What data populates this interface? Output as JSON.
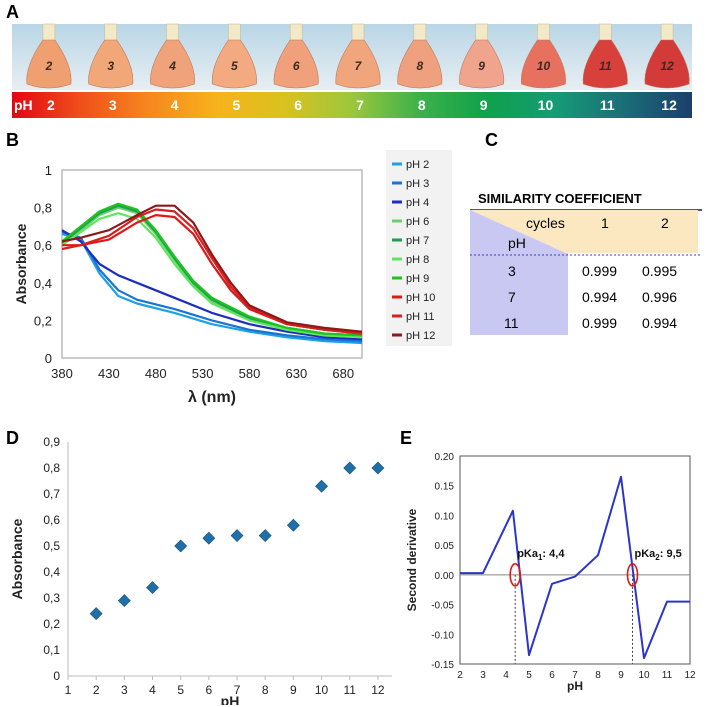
{
  "panels": {
    "a": "A",
    "b": "B",
    "c": "C",
    "d": "D",
    "e": "E"
  },
  "panel_a": {
    "ph_label": "pH",
    "ph_values": [
      "2",
      "3",
      "4",
      "5",
      "6",
      "7",
      "8",
      "9",
      "10",
      "11",
      "12"
    ],
    "bar_colors": [
      "#e30613",
      "#f04e1a",
      "#f6861f",
      "#f7b21b",
      "#d9c21f",
      "#9cc63c",
      "#3bb14a",
      "#0fa14b",
      "#159b75",
      "#1a6e78",
      "#1c3f6b"
    ],
    "flask_colors": [
      "#f0a070",
      "#f1a777",
      "#f0a27a",
      "#f3aa80",
      "#f0a07b",
      "#f1a57d",
      "#efa07f",
      "#f0a48e",
      "#e8705f",
      "#d8403b",
      "#d33a3a"
    ],
    "flask_marks": [
      "2",
      "3",
      "4",
      "5",
      "6",
      "7",
      "8",
      "9",
      "10",
      "11",
      "12"
    ]
  },
  "chart_data": [
    {
      "id": "B",
      "type": "line",
      "xlabel": "λ (nm)",
      "ylabel": "Absorbance",
      "xlim": [
        380,
        700
      ],
      "ylim": [
        0,
        1
      ],
      "xticks": [
        "380",
        "430",
        "480",
        "530",
        "580",
        "630",
        "680"
      ],
      "yticks": [
        "0",
        "0,2",
        "0,4",
        "0,6",
        "0,8",
        "1"
      ],
      "series": [
        {
          "name": "pH 2",
          "color": "#1ea0e6",
          "x": [
            380,
            400,
            420,
            440,
            460,
            500,
            540,
            580,
            620,
            660,
            700
          ],
          "y": [
            0.66,
            0.63,
            0.45,
            0.33,
            0.29,
            0.24,
            0.18,
            0.14,
            0.11,
            0.09,
            0.08
          ]
        },
        {
          "name": "pH 3",
          "color": "#1a75d2",
          "x": [
            380,
            400,
            420,
            440,
            460,
            500,
            540,
            580,
            620,
            660,
            700
          ],
          "y": [
            0.67,
            0.64,
            0.47,
            0.36,
            0.31,
            0.26,
            0.2,
            0.15,
            0.12,
            0.1,
            0.09
          ]
        },
        {
          "name": "pH 4",
          "color": "#1c2dbf",
          "x": [
            380,
            400,
            420,
            440,
            460,
            500,
            540,
            580,
            620,
            660,
            700
          ],
          "y": [
            0.68,
            0.62,
            0.5,
            0.44,
            0.4,
            0.32,
            0.24,
            0.18,
            0.14,
            0.11,
            0.1
          ]
        },
        {
          "name": "pH 6",
          "color": "#6fcf6f",
          "x": [
            380,
            400,
            420,
            440,
            460,
            480,
            500,
            520,
            540,
            580,
            620,
            660,
            700
          ],
          "y": [
            0.6,
            0.68,
            0.76,
            0.8,
            0.77,
            0.66,
            0.52,
            0.39,
            0.3,
            0.2,
            0.15,
            0.12,
            0.11
          ]
        },
        {
          "name": "pH 7",
          "color": "#1f9e52",
          "x": [
            380,
            400,
            420,
            440,
            460,
            480,
            500,
            520,
            540,
            580,
            620,
            660,
            700
          ],
          "y": [
            0.61,
            0.69,
            0.77,
            0.81,
            0.78,
            0.67,
            0.53,
            0.4,
            0.31,
            0.21,
            0.16,
            0.13,
            0.12
          ]
        },
        {
          "name": "pH 8",
          "color": "#5ee65e",
          "x": [
            380,
            400,
            420,
            440,
            460,
            480,
            500,
            520,
            540,
            580,
            620,
            660,
            700
          ],
          "y": [
            0.6,
            0.67,
            0.74,
            0.77,
            0.74,
            0.64,
            0.5,
            0.38,
            0.29,
            0.2,
            0.15,
            0.12,
            0.11
          ]
        },
        {
          "name": "pH 9",
          "color": "#1fc21f",
          "x": [
            380,
            400,
            420,
            440,
            460,
            480,
            500,
            520,
            540,
            580,
            620,
            660,
            700
          ],
          "y": [
            0.62,
            0.7,
            0.78,
            0.82,
            0.79,
            0.68,
            0.54,
            0.41,
            0.32,
            0.22,
            0.16,
            0.13,
            0.12
          ]
        },
        {
          "name": "pH 10",
          "color": "#e01818",
          "x": [
            380,
            400,
            430,
            460,
            480,
            500,
            520,
            540,
            560,
            580,
            620,
            660,
            700
          ],
          "y": [
            0.6,
            0.6,
            0.63,
            0.72,
            0.76,
            0.75,
            0.66,
            0.5,
            0.36,
            0.26,
            0.18,
            0.15,
            0.13
          ]
        },
        {
          "name": "pH 11",
          "color": "#d42020",
          "x": [
            380,
            400,
            430,
            460,
            480,
            500,
            520,
            540,
            560,
            580,
            620,
            660,
            700
          ],
          "y": [
            0.58,
            0.6,
            0.65,
            0.75,
            0.79,
            0.78,
            0.69,
            0.53,
            0.38,
            0.27,
            0.18,
            0.15,
            0.13
          ]
        },
        {
          "name": "pH 12",
          "color": "#8c1a1a",
          "x": [
            380,
            400,
            430,
            460,
            480,
            500,
            520,
            540,
            560,
            580,
            620,
            660,
            700
          ],
          "y": [
            0.62,
            0.64,
            0.68,
            0.76,
            0.81,
            0.81,
            0.72,
            0.55,
            0.4,
            0.28,
            0.19,
            0.16,
            0.14
          ]
        }
      ]
    },
    {
      "id": "D",
      "type": "scatter",
      "xlabel": "pH",
      "ylabel": "Absorbance",
      "xlim": [
        1,
        12.5
      ],
      "ylim": [
        0,
        0.9
      ],
      "xticks": [
        "1",
        "2",
        "3",
        "4",
        "5",
        "6",
        "7",
        "8",
        "9",
        "10",
        "11",
        "12"
      ],
      "yticks": [
        "0",
        "0,1",
        "0,2",
        "0,3",
        "0,4",
        "0,5",
        "0,6",
        "0,7",
        "0,8",
        "0,9"
      ],
      "marker_color": "#1f6fa8",
      "x": [
        2,
        3,
        4,
        5,
        6,
        7,
        8,
        9,
        10,
        11,
        12
      ],
      "y": [
        0.24,
        0.29,
        0.34,
        0.5,
        0.53,
        0.54,
        0.54,
        0.58,
        0.73,
        0.8,
        0.8
      ]
    },
    {
      "id": "E",
      "type": "line",
      "xlabel": "pH",
      "ylabel": "Second derivative",
      "xlim": [
        2,
        12
      ],
      "ylim": [
        -0.15,
        0.2
      ],
      "xticks": [
        "2",
        "3",
        "4",
        "5",
        "6",
        "7",
        "8",
        "9",
        "10",
        "11",
        "12"
      ],
      "yticks": [
        "-0.15",
        "-0.10",
        "-0.05",
        "0.00",
        "0.05",
        "0.10",
        "0.15",
        "0.20"
      ],
      "line_color": "#2b35c8",
      "x": [
        2,
        3,
        4.3,
        5,
        6,
        7,
        8,
        9,
        10,
        11,
        12
      ],
      "y": [
        0.003,
        0.003,
        0.108,
        -0.135,
        -0.015,
        -0.003,
        0.033,
        0.165,
        -0.14,
        -0.045,
        -0.045
      ],
      "annotations": [
        {
          "label": "pKa",
          "sub": "1",
          "text": ": 4,4",
          "x": 4.4
        },
        {
          "label": "pKa",
          "sub": "2",
          "text": ": 9,5",
          "x": 9.5
        }
      ]
    }
  ],
  "table_c": {
    "title": "SIMILARITY COEFFICIENT",
    "cycles_label": "cycles",
    "ph_label": "pH",
    "cycles": [
      "1",
      "2"
    ],
    "rows": [
      {
        "ph": "3",
        "v1": "0.999",
        "v2": "0.995"
      },
      {
        "ph": "7",
        "v1": "0.994",
        "v2": "0.996"
      },
      {
        "ph": "11",
        "v1": "0.999",
        "v2": "0.994"
      }
    ]
  }
}
